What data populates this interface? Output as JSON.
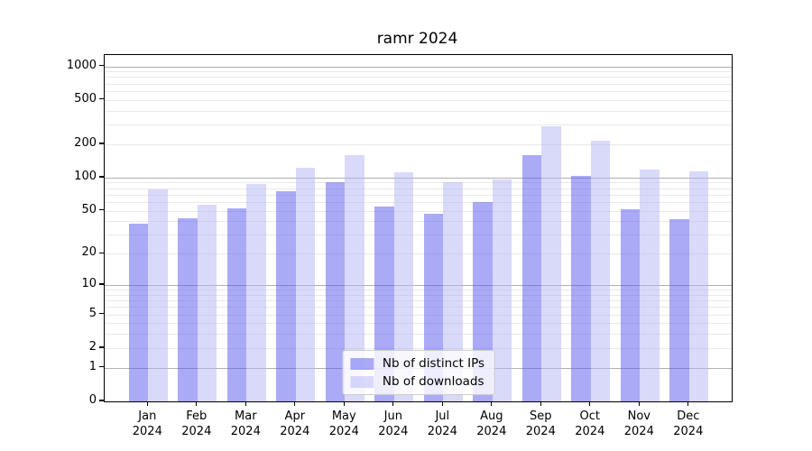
{
  "title": "ramr 2024",
  "chart_data": {
    "type": "bar",
    "title": "ramr 2024",
    "categories": [
      "Jan 2024",
      "Feb 2024",
      "Mar 2024",
      "Apr 2024",
      "May 2024",
      "Jun 2024",
      "Jul 2024",
      "Aug 2024",
      "Sep 2024",
      "Oct 2024",
      "Nov 2024",
      "Dec 2024"
    ],
    "series": [
      {
        "name": "Nb of distinct IPs",
        "color": "rgba(85,85,240,0.5)",
        "values": [
          38,
          43,
          53,
          75,
          90,
          55,
          47,
          60,
          160,
          103,
          52,
          42
        ]
      },
      {
        "name": "Nb of downloads",
        "color": "rgba(180,180,245,0.5)",
        "values": [
          78,
          57,
          87,
          122,
          158,
          112,
          91,
          96,
          290,
          216,
          118,
          113
        ]
      }
    ],
    "xlabel": "",
    "ylabel": "",
    "yscale": "symlog (position ~ log10(1+v))",
    "ylim": [
      0,
      1262
    ],
    "yticks": [
      1000,
      500,
      200,
      100,
      50,
      20,
      10,
      5,
      2,
      1,
      0
    ],
    "grid": true,
    "grid_major_color": "#b0b0b0",
    "grid_minor_color": "#e9e9e9",
    "axis_color": "#000000",
    "legend_position": "lower center"
  }
}
